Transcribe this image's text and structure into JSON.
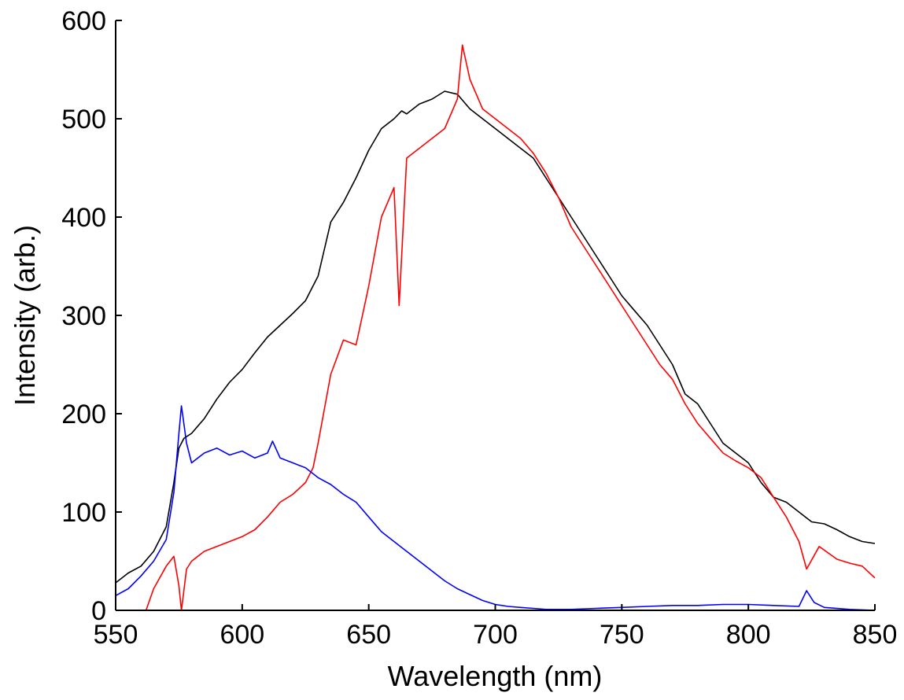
{
  "chart_data": {
    "type": "line",
    "title": "",
    "xlabel": "Wavelength (nm)",
    "ylabel": "Intensity (arb.)",
    "xlim": [
      550,
      850
    ],
    "ylim": [
      0,
      600
    ],
    "xticks": [
      550,
      600,
      650,
      700,
      750,
      800,
      850
    ],
    "yticks": [
      0,
      100,
      200,
      300,
      400,
      500,
      600
    ],
    "grid": false,
    "legend": "none",
    "series": [
      {
        "color": "#000000",
        "x": [
          550,
          555,
          560,
          565,
          570,
          573,
          575,
          577,
          580,
          585,
          590,
          595,
          600,
          605,
          610,
          615,
          620,
          625,
          630,
          635,
          640,
          645,
          650,
          655,
          660,
          663,
          665,
          670,
          675,
          680,
          685,
          690,
          695,
          700,
          705,
          710,
          715,
          720,
          725,
          730,
          735,
          740,
          745,
          750,
          755,
          760,
          765,
          770,
          775,
          780,
          785,
          790,
          795,
          800,
          805,
          810,
          815,
          820,
          825,
          830,
          835,
          840,
          845,
          850
        ],
        "y": [
          28,
          38,
          45,
          60,
          85,
          130,
          165,
          175,
          180,
          195,
          215,
          232,
          245,
          262,
          278,
          290,
          302,
          315,
          340,
          395,
          415,
          440,
          468,
          490,
          500,
          508,
          505,
          515,
          520,
          528,
          525,
          510,
          500,
          490,
          480,
          470,
          460,
          440,
          420,
          400,
          380,
          360,
          340,
          320,
          305,
          290,
          270,
          250,
          220,
          210,
          190,
          170,
          160,
          150,
          130,
          115,
          110,
          100,
          90,
          88,
          82,
          75,
          70,
          68
        ]
      },
      {
        "color": "#ff0000",
        "x": [
          550,
          555,
          560,
          562,
          565,
          570,
          573,
          575,
          576,
          578,
          580,
          585,
          590,
          595,
          600,
          605,
          610,
          615,
          620,
          625,
          628,
          630,
          635,
          640,
          645,
          650,
          655,
          660,
          662,
          665,
          670,
          675,
          680,
          685,
          687,
          690,
          695,
          700,
          705,
          710,
          715,
          720,
          725,
          730,
          735,
          740,
          745,
          750,
          755,
          760,
          765,
          770,
          775,
          780,
          785,
          790,
          795,
          800,
          805,
          810,
          815,
          820,
          823,
          828,
          835,
          840,
          845,
          850
        ],
        "y": [
          0,
          0,
          0,
          0,
          22,
          45,
          55,
          25,
          0,
          42,
          50,
          60,
          65,
          70,
          75,
          82,
          95,
          110,
          118,
          130,
          145,
          170,
          240,
          275,
          270,
          330,
          400,
          430,
          310,
          460,
          470,
          480,
          490,
          520,
          575,
          540,
          510,
          500,
          490,
          480,
          465,
          445,
          420,
          390,
          370,
          350,
          330,
          310,
          290,
          270,
          250,
          235,
          210,
          190,
          175,
          160,
          152,
          145,
          135,
          115,
          95,
          70,
          42,
          65,
          52,
          48,
          45,
          33
        ]
      },
      {
        "color": "#0000ff",
        "x": [
          550,
          555,
          560,
          565,
          570,
          573,
          575,
          576,
          578,
          580,
          585,
          590,
          595,
          600,
          605,
          610,
          612,
          615,
          620,
          625,
          630,
          635,
          640,
          645,
          650,
          655,
          660,
          665,
          670,
          675,
          680,
          685,
          690,
          695,
          700,
          705,
          710,
          715,
          720,
          725,
          730,
          740,
          750,
          760,
          770,
          780,
          790,
          800,
          810,
          820,
          823,
          826,
          830,
          840,
          850
        ],
        "y": [
          15,
          22,
          35,
          50,
          72,
          120,
          180,
          208,
          170,
          150,
          160,
          165,
          158,
          162,
          155,
          160,
          172,
          155,
          150,
          145,
          135,
          128,
          118,
          110,
          95,
          80,
          70,
          60,
          50,
          40,
          30,
          22,
          16,
          10,
          6,
          4,
          3,
          2,
          1,
          1,
          1,
          2,
          3,
          4,
          5,
          5,
          6,
          6,
          5,
          4,
          20,
          8,
          3,
          1,
          0
        ]
      }
    ]
  }
}
